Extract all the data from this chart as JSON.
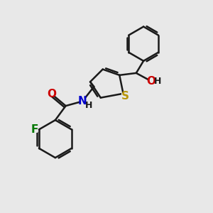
{
  "bg_color": "#e8e8e8",
  "bond_color": "#1a1a1a",
  "bond_width": 1.8,
  "atom_labels": {
    "S": {
      "color": "#b8960c",
      "fontsize": 11,
      "fontweight": "bold"
    },
    "N": {
      "color": "#0000cc",
      "fontsize": 11,
      "fontweight": "bold"
    },
    "O": {
      "color": "#cc0000",
      "fontsize": 11,
      "fontweight": "bold"
    },
    "F": {
      "color": "#007700",
      "fontsize": 11,
      "fontweight": "bold"
    },
    "H": {
      "color": "#1a1a1a",
      "fontsize": 9,
      "fontweight": "bold"
    }
  },
  "xlim": [
    0,
    10
  ],
  "ylim": [
    0,
    10
  ],
  "figure_size": [
    3.0,
    3.0
  ],
  "dpi": 100
}
